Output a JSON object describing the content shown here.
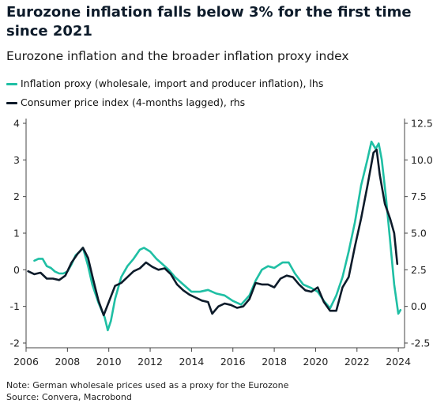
{
  "title": "Eurozone inflation falls below 3% for the first time since 2021",
  "subtitle": "Eurozone inflation and the broader inflation proxy index",
  "note_line1": "Note: German wholesale prices used as a proxy for the Eurozone",
  "note_line2": "Source: Convera, Macrobond",
  "colors": {
    "proxy": "#1fbfa4",
    "cpi": "#0d1b2a",
    "axis": "#444444"
  },
  "chart_data": {
    "type": "line",
    "title": "Eurozone inflation and the broader inflation proxy index",
    "x_ticks": [
      2006,
      2008,
      2010,
      2012,
      2014,
      2016,
      2018,
      2020,
      2022,
      2024
    ],
    "xlim": [
      2006,
      2024.3
    ],
    "y_left": {
      "ticks": [
        "4",
        "3",
        "2",
        "1",
        "0",
        "-1",
        "-2"
      ],
      "lim": [
        -2,
        4
      ]
    },
    "y_right": {
      "ticks": [
        "12.5",
        "10.0",
        "7.5",
        "5.0",
        "2.5",
        "0.0",
        "-2.5"
      ],
      "lim": [
        -2.5,
        12.5
      ]
    },
    "grid": false,
    "legend_position": "top-left",
    "series": [
      {
        "name": "Inflation proxy (wholesale, import and producer inflation), lhs",
        "axis": "left",
        "points": [
          [
            2006.4,
            0.25
          ],
          [
            2006.6,
            0.3
          ],
          [
            2006.8,
            0.3
          ],
          [
            2007.0,
            0.1
          ],
          [
            2007.2,
            0.05
          ],
          [
            2007.4,
            -0.05
          ],
          [
            2007.6,
            -0.1
          ],
          [
            2007.8,
            -0.1
          ],
          [
            2008.0,
            -0.05
          ],
          [
            2008.2,
            0.15
          ],
          [
            2008.4,
            0.4
          ],
          [
            2008.6,
            0.5
          ],
          [
            2008.75,
            0.6
          ],
          [
            2009.0,
            0.1
          ],
          [
            2009.2,
            -0.4
          ],
          [
            2009.5,
            -0.9
          ],
          [
            2009.8,
            -1.3
          ],
          [
            2009.95,
            -1.65
          ],
          [
            2010.1,
            -1.4
          ],
          [
            2010.3,
            -0.8
          ],
          [
            2010.6,
            -0.2
          ],
          [
            2010.9,
            0.1
          ],
          [
            2011.2,
            0.3
          ],
          [
            2011.5,
            0.55
          ],
          [
            2011.7,
            0.6
          ],
          [
            2012.0,
            0.5
          ],
          [
            2012.3,
            0.3
          ],
          [
            2012.6,
            0.15
          ],
          [
            2012.9,
            0.0
          ],
          [
            2013.2,
            -0.2
          ],
          [
            2013.6,
            -0.4
          ],
          [
            2014.0,
            -0.6
          ],
          [
            2014.4,
            -0.6
          ],
          [
            2014.8,
            -0.55
          ],
          [
            2015.2,
            -0.65
          ],
          [
            2015.6,
            -0.7
          ],
          [
            2016.0,
            -0.85
          ],
          [
            2016.4,
            -0.95
          ],
          [
            2016.8,
            -0.7
          ],
          [
            2017.1,
            -0.3
          ],
          [
            2017.4,
            0.0
          ],
          [
            2017.7,
            0.1
          ],
          [
            2018.0,
            0.05
          ],
          [
            2018.4,
            0.2
          ],
          [
            2018.7,
            0.2
          ],
          [
            2019.0,
            -0.1
          ],
          [
            2019.4,
            -0.4
          ],
          [
            2019.8,
            -0.5
          ],
          [
            2020.1,
            -0.6
          ],
          [
            2020.4,
            -0.85
          ],
          [
            2020.7,
            -1.05
          ],
          [
            2021.0,
            -0.7
          ],
          [
            2021.3,
            -0.2
          ],
          [
            2021.6,
            0.5
          ],
          [
            2021.9,
            1.3
          ],
          [
            2022.2,
            2.3
          ],
          [
            2022.5,
            3.0
          ],
          [
            2022.7,
            3.5
          ],
          [
            2022.9,
            3.3
          ],
          [
            2023.05,
            3.45
          ],
          [
            2023.2,
            3.0
          ],
          [
            2023.4,
            2.0
          ],
          [
            2023.6,
            0.8
          ],
          [
            2023.8,
            -0.4
          ],
          [
            2024.0,
            -1.2
          ],
          [
            2024.1,
            -1.1
          ]
        ]
      },
      {
        "name": "Consumer price index (4-months lagged), rhs",
        "axis": "right",
        "points": [
          [
            2006.1,
            2.4
          ],
          [
            2006.4,
            2.2
          ],
          [
            2006.7,
            2.3
          ],
          [
            2007.0,
            1.9
          ],
          [
            2007.3,
            1.9
          ],
          [
            2007.6,
            1.8
          ],
          [
            2007.9,
            2.1
          ],
          [
            2008.2,
            3.0
          ],
          [
            2008.5,
            3.6
          ],
          [
            2008.75,
            4.0
          ],
          [
            2009.0,
            3.3
          ],
          [
            2009.25,
            1.8
          ],
          [
            2009.5,
            0.4
          ],
          [
            2009.75,
            -0.6
          ],
          [
            2010.0,
            0.3
          ],
          [
            2010.3,
            1.4
          ],
          [
            2010.6,
            1.6
          ],
          [
            2010.9,
            2.0
          ],
          [
            2011.2,
            2.4
          ],
          [
            2011.5,
            2.6
          ],
          [
            2011.8,
            3.0
          ],
          [
            2012.1,
            2.7
          ],
          [
            2012.4,
            2.5
          ],
          [
            2012.7,
            2.6
          ],
          [
            2013.0,
            2.2
          ],
          [
            2013.3,
            1.5
          ],
          [
            2013.6,
            1.1
          ],
          [
            2013.9,
            0.8
          ],
          [
            2014.2,
            0.6
          ],
          [
            2014.5,
            0.4
          ],
          [
            2014.8,
            0.3
          ],
          [
            2015.0,
            -0.5
          ],
          [
            2015.3,
            0.0
          ],
          [
            2015.6,
            0.2
          ],
          [
            2015.9,
            0.1
          ],
          [
            2016.2,
            -0.1
          ],
          [
            2016.5,
            0.0
          ],
          [
            2016.8,
            0.5
          ],
          [
            2017.1,
            1.6
          ],
          [
            2017.4,
            1.5
          ],
          [
            2017.7,
            1.5
          ],
          [
            2018.0,
            1.3
          ],
          [
            2018.3,
            1.9
          ],
          [
            2018.6,
            2.1
          ],
          [
            2018.9,
            2.0
          ],
          [
            2019.2,
            1.5
          ],
          [
            2019.5,
            1.1
          ],
          [
            2019.8,
            1.0
          ],
          [
            2020.1,
            1.3
          ],
          [
            2020.4,
            0.3
          ],
          [
            2020.7,
            -0.3
          ],
          [
            2021.0,
            -0.3
          ],
          [
            2021.3,
            1.3
          ],
          [
            2021.6,
            2.0
          ],
          [
            2021.9,
            4.1
          ],
          [
            2022.2,
            6.0
          ],
          [
            2022.5,
            8.2
          ],
          [
            2022.8,
            10.5
          ],
          [
            2022.95,
            10.7
          ],
          [
            2023.1,
            9.0
          ],
          [
            2023.35,
            7.0
          ],
          [
            2023.6,
            6.0
          ],
          [
            2023.8,
            5.0
          ],
          [
            2023.95,
            2.9
          ]
        ]
      }
    ]
  }
}
